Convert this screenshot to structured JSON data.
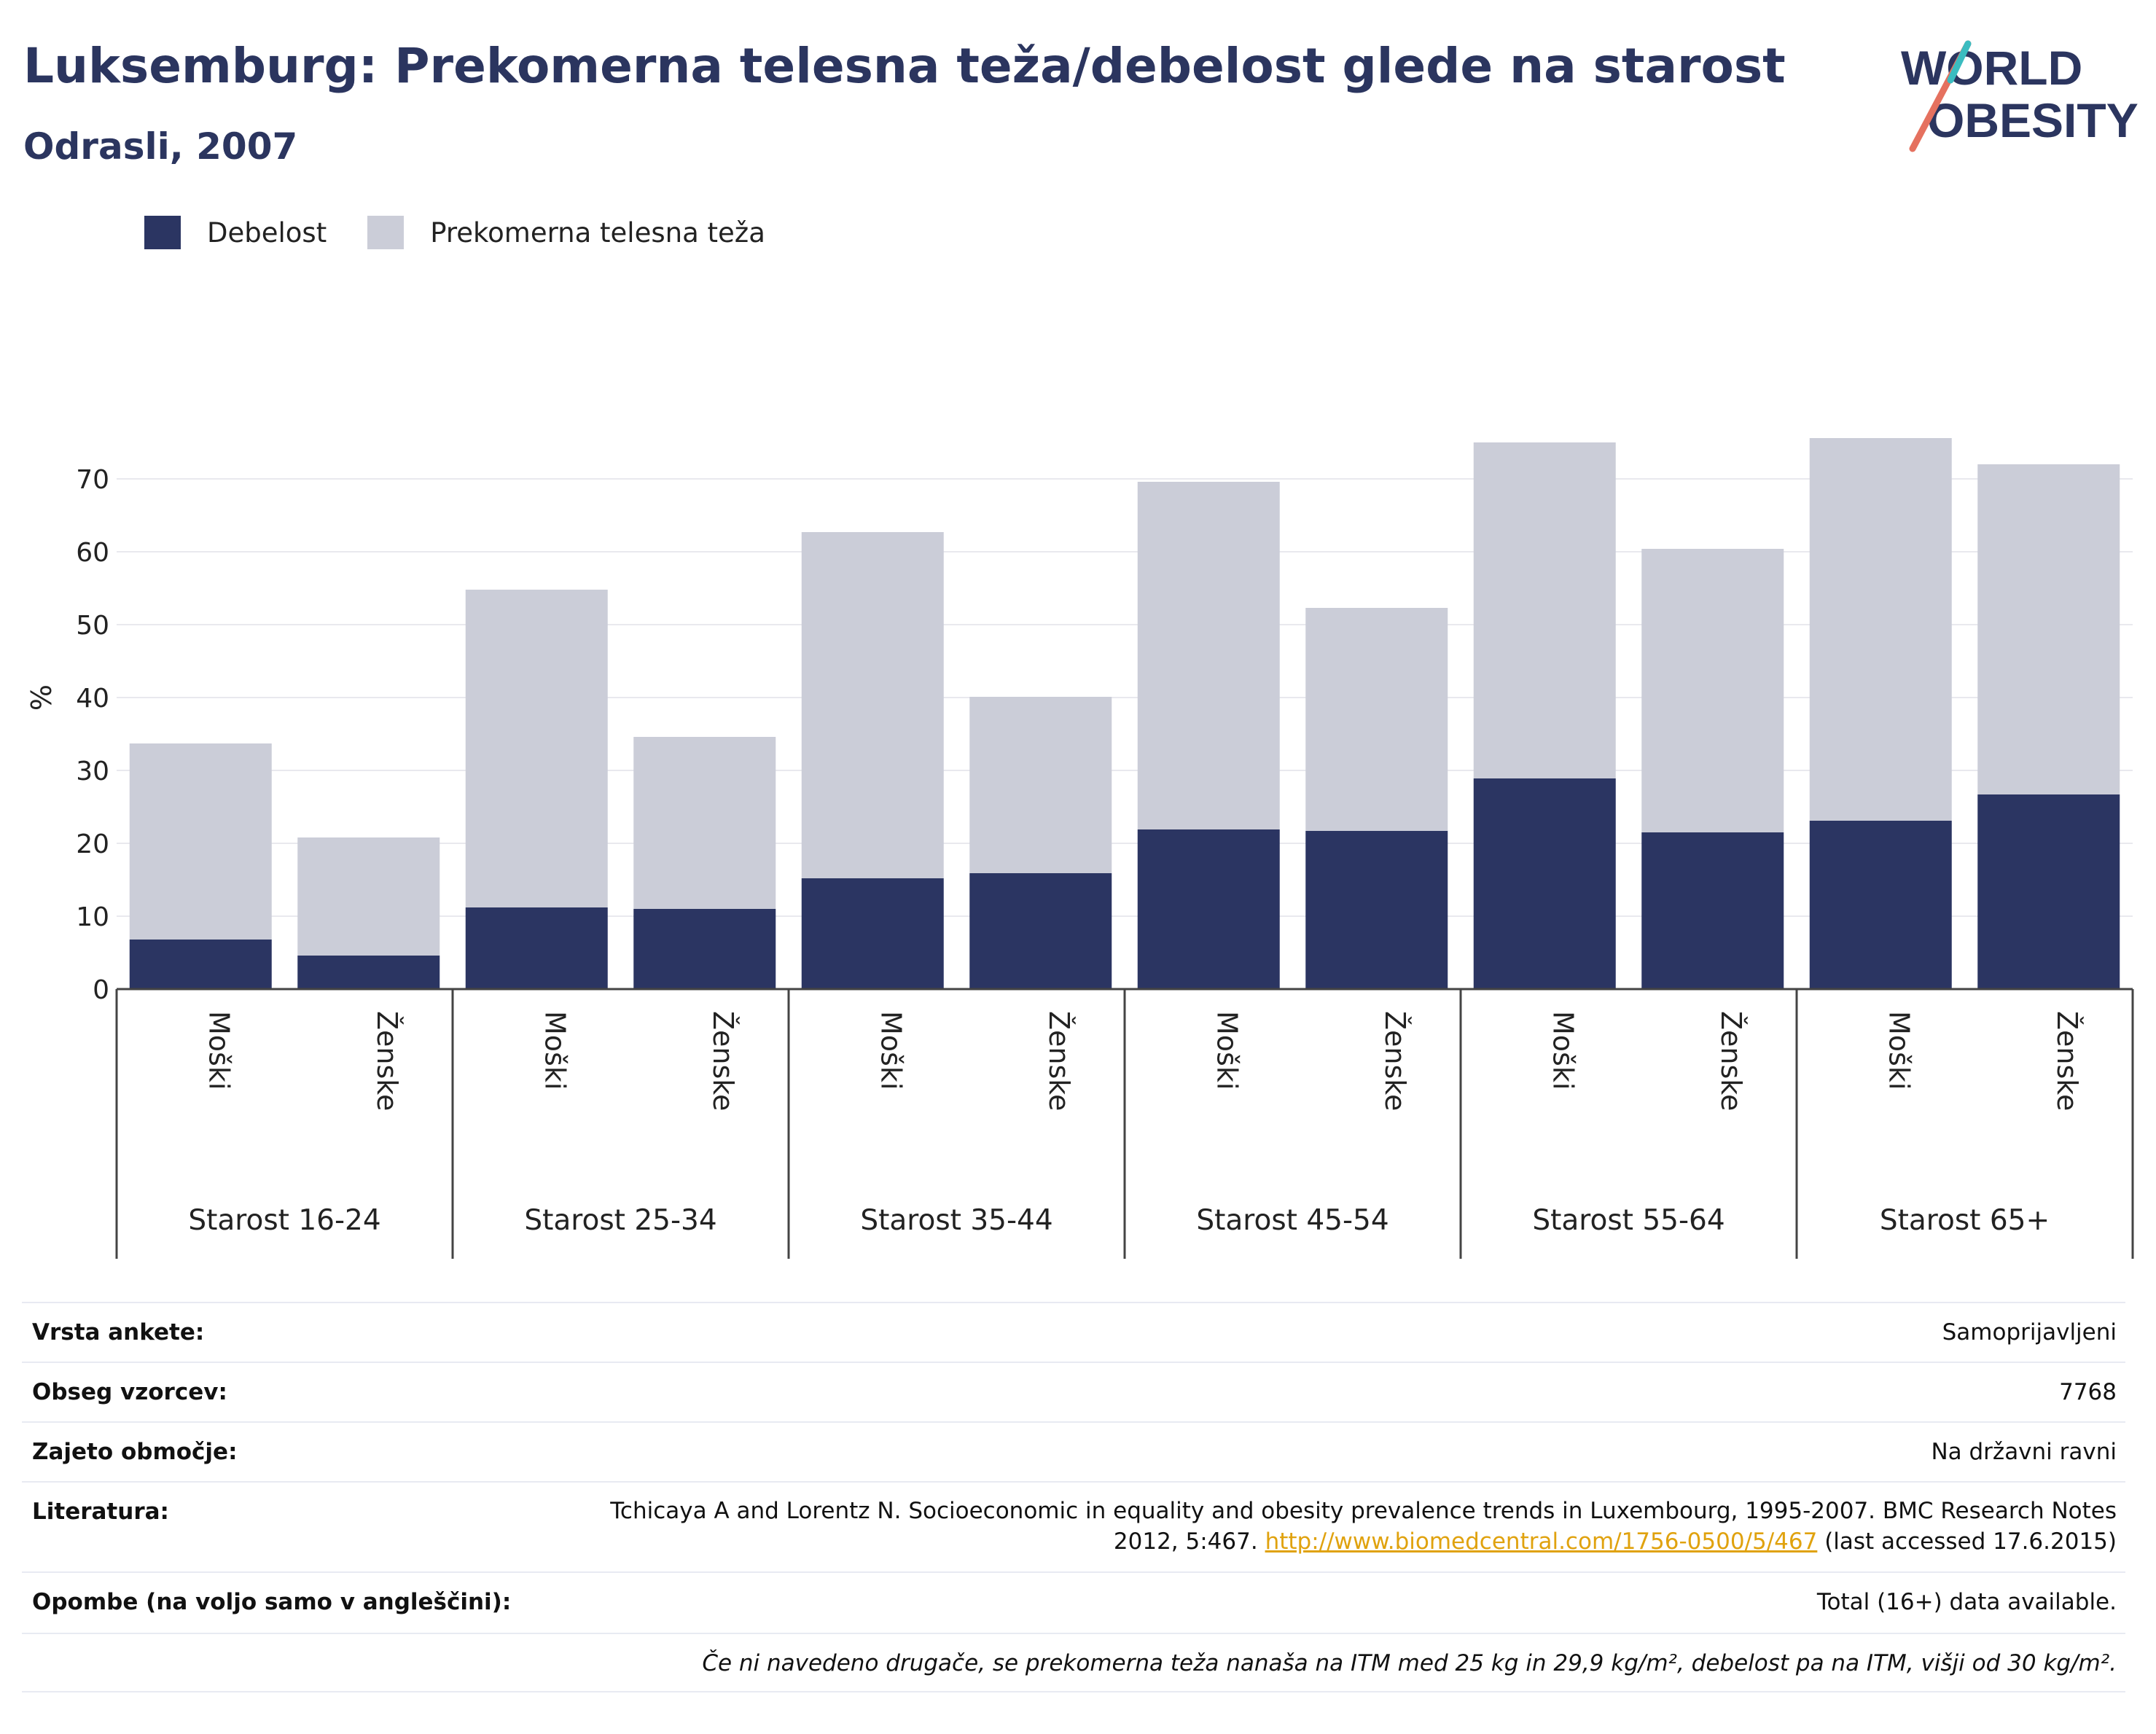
{
  "title": "Luksemburg: Prekomerna telesna teža/debelost glede na starost",
  "subtitle": "Odrasli, 2007",
  "logo": {
    "line1": "WORLD",
    "line2": "OBESITY"
  },
  "legend": {
    "obesity_label": "Debelost",
    "overweight_label": "Prekomerna telesna teža",
    "obesity_color": "#2b3562",
    "overweight_color": "#cbcdd8"
  },
  "chart_data": {
    "type": "bar",
    "stacked": true,
    "ylabel": "%",
    "ylim": [
      0,
      80
    ],
    "yticks": [
      0,
      10,
      20,
      30,
      40,
      50,
      60,
      70
    ],
    "grid": true,
    "groups": [
      "Starost 16-24",
      "Starost 25-34",
      "Starost 35-44",
      "Starost 45-54",
      "Starost 55-64",
      "Starost 65+"
    ],
    "categories": [
      "Moški",
      "Ženske",
      "Moški",
      "Ženske",
      "Moški",
      "Ženske",
      "Moški",
      "Ženske",
      "Moški",
      "Ženske",
      "Moški",
      "Ženske"
    ],
    "series": [
      {
        "name": "Debelost",
        "color": "#2b3562",
        "values": [
          6.8,
          4.6,
          11.2,
          11.0,
          15.2,
          15.9,
          21.9,
          21.7,
          28.9,
          21.5,
          23.1,
          26.7
        ]
      },
      {
        "name": "Prekomerna telesna teža",
        "color": "#cbcdd8",
        "values": [
          26.9,
          16.2,
          43.6,
          23.6,
          47.5,
          24.2,
          47.7,
          30.6,
          46.1,
          38.9,
          52.5,
          45.3
        ]
      }
    ],
    "totals": [
      33.7,
      20.8,
      54.8,
      34.6,
      62.7,
      40.1,
      69.6,
      52.3,
      75.0,
      60.4,
      75.6,
      72.0
    ]
  },
  "info": {
    "survey_type_label": "Vrsta ankete:",
    "survey_type_value": "Samoprijavljeni",
    "sample_size_label": "Obseg vzorcev:",
    "sample_size_value": "7768",
    "coverage_label": "Zajeto območje:",
    "coverage_value": "Na državni ravni",
    "literature_label": "Literatura:",
    "literature_text": "Tchicaya A and Lorentz N. Socioeconomic in equality and obesity prevalence trends in Luxembourg, 1995-2007. BMC Research Notes 2012, 5:467. ",
    "literature_link": "http://www.biomedcentral.com/1756-0500/5/467",
    "literature_suffix": " (last accessed 17.6.2015)",
    "notes_label": "Opombe (na voljo samo v angleščini):",
    "notes_value": "Total (16+) data available.",
    "footnote": "Če ni navedeno drugače, se prekomerna teža nanaša na ITM med 25 kg in 29,9 kg/m², debelost pa na ITM, višji od 30 kg/m²."
  }
}
